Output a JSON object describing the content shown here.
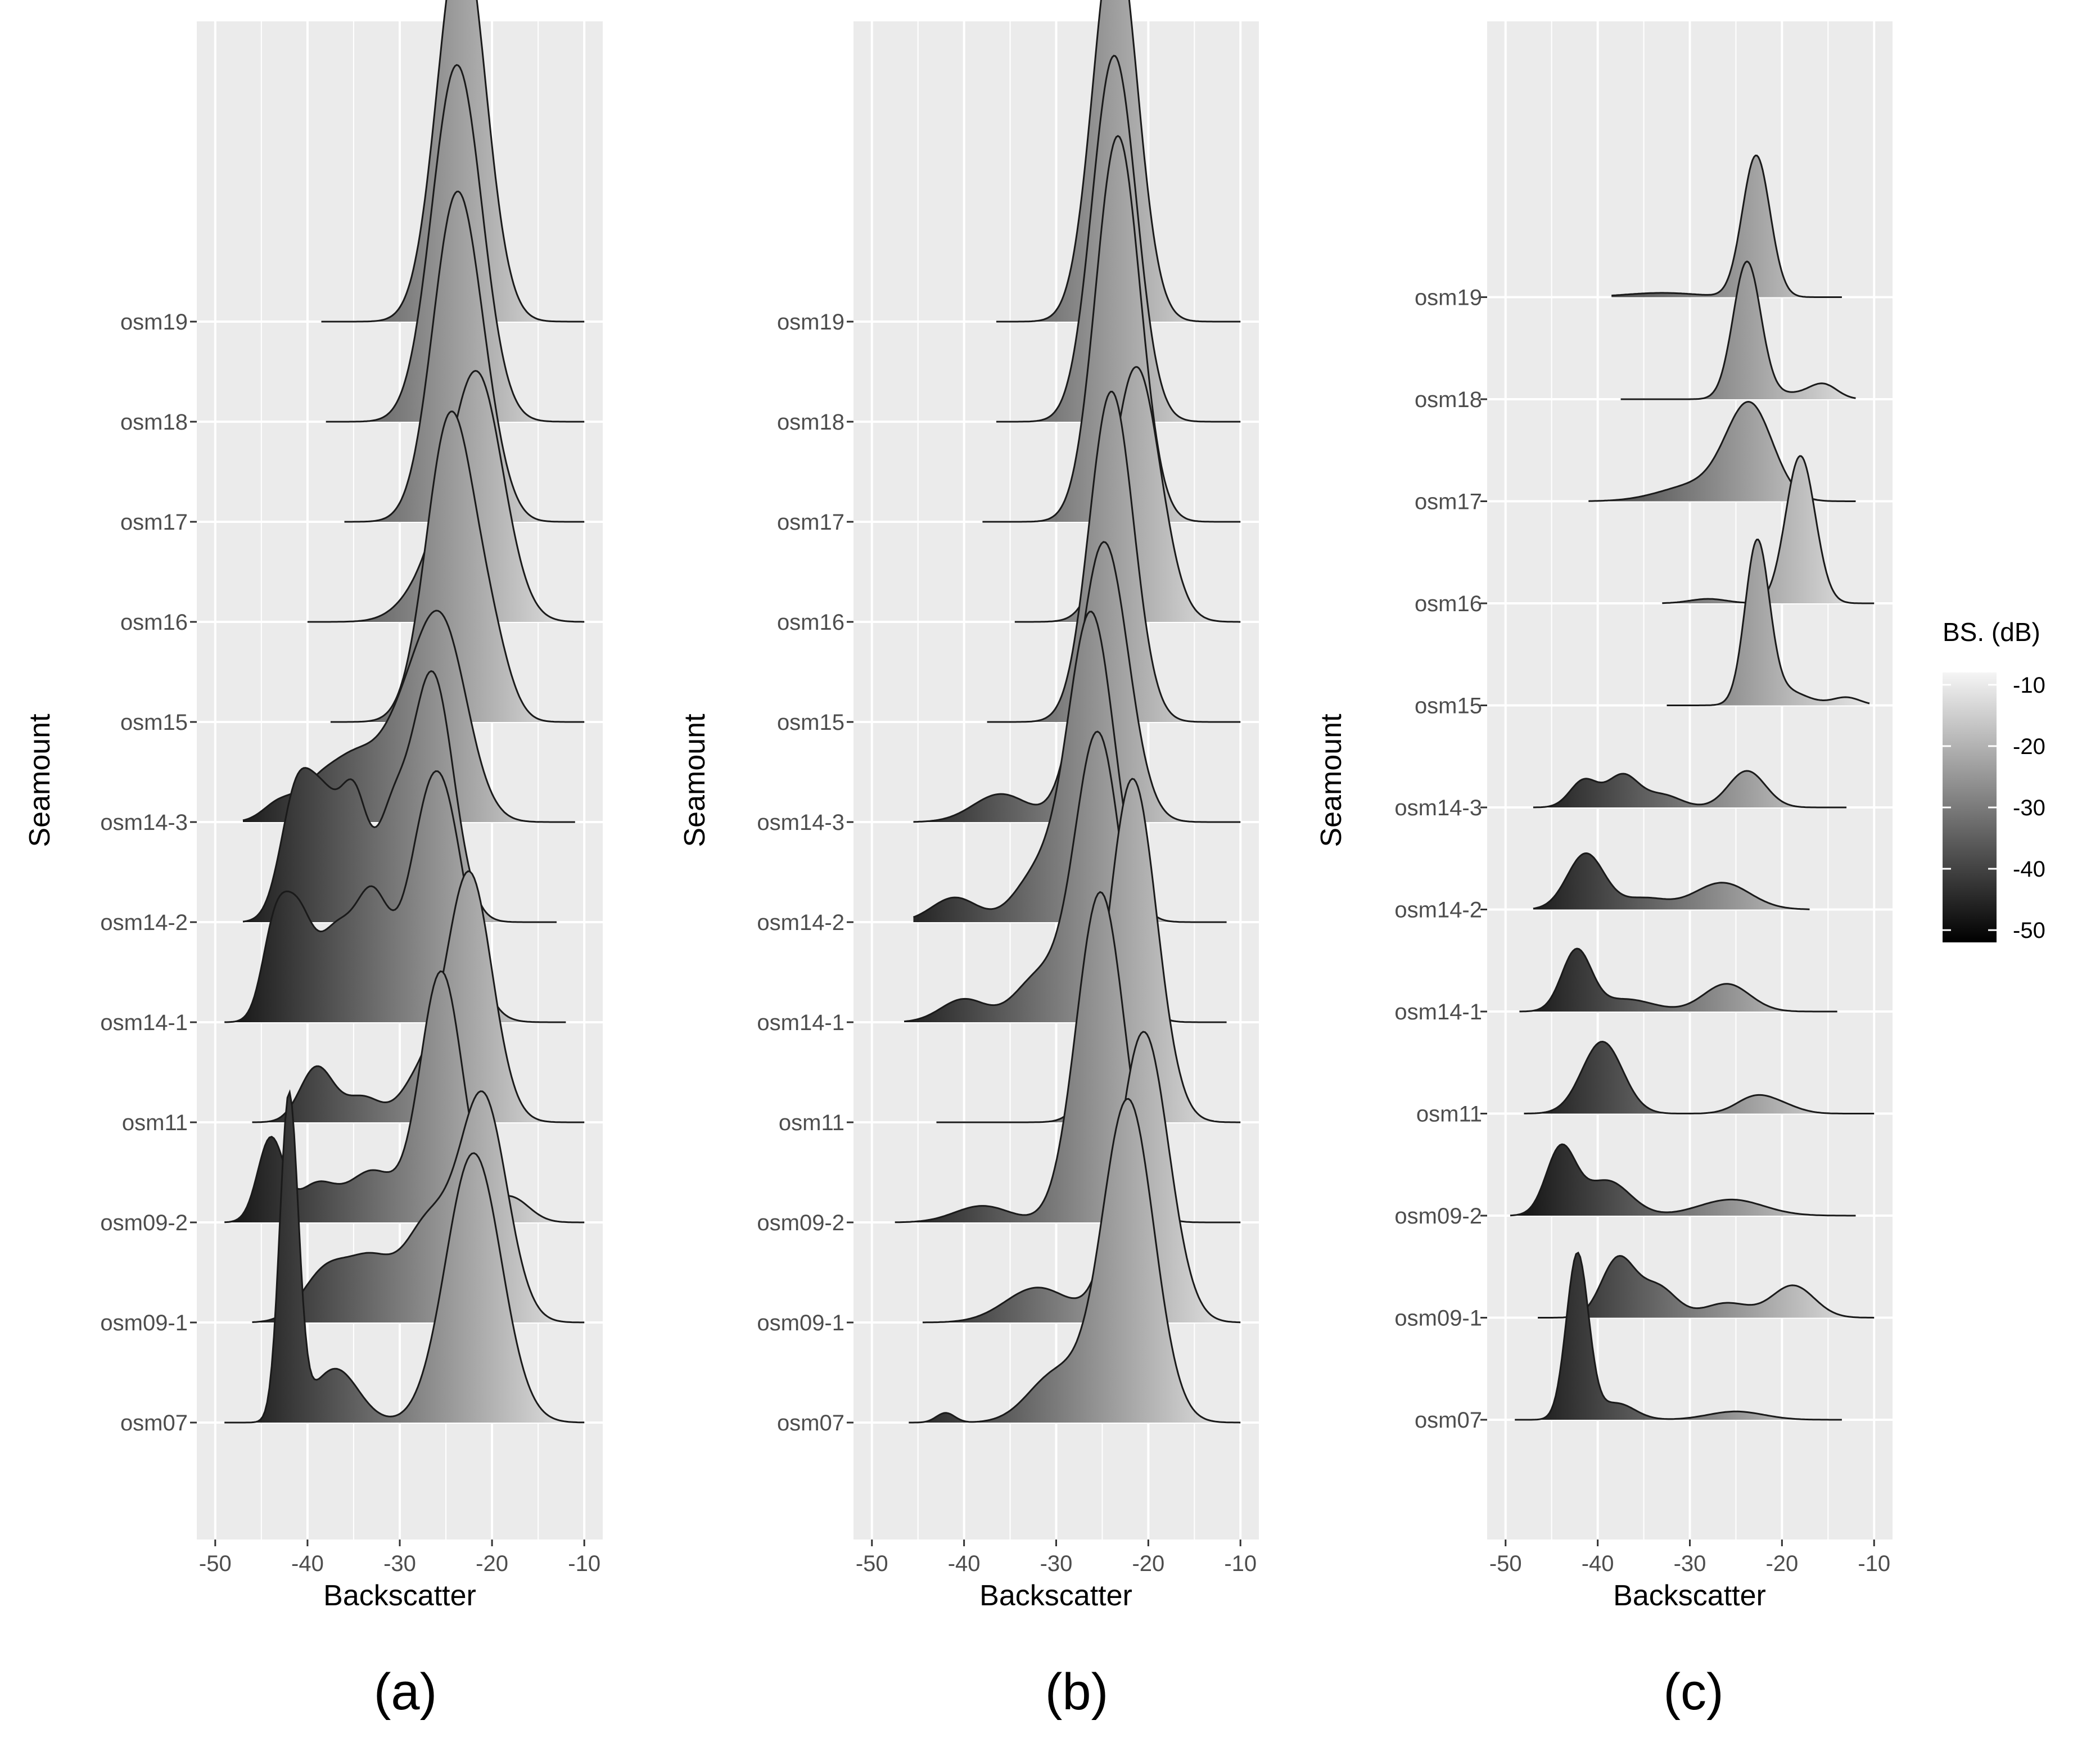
{
  "figure": {
    "legend": {
      "title": "BS. (dB)",
      "ticks": [
        "-10",
        "-20",
        "-30",
        "-40",
        "-50"
      ],
      "gradient": [
        "#f5f5f5",
        "#000000"
      ],
      "range": [
        -52,
        -8
      ]
    },
    "background": "#ebebeb",
    "grid_color": "#ffffff"
  },
  "chart_data": [
    {
      "panel_label": "(a)",
      "type": "ridgeline",
      "xlabel": "Backscatter",
      "ylabel": "Seamount",
      "xlim": [
        -52,
        -8
      ],
      "xticks": [
        -50,
        -40,
        -30,
        -20,
        -10
      ],
      "xtick_labels": [
        "-50",
        "-40",
        "-30",
        "-20",
        "-10"
      ],
      "categories": [
        "osm07",
        "osm09-1",
        "osm09-2",
        "osm11",
        "osm14-1",
        "osm14-2",
        "osm14-3",
        "osm15",
        "osm16",
        "osm17",
        "osm18",
        "osm19"
      ],
      "series": [
        {
          "label": "osm07",
          "range": [
            -49,
            -10
          ],
          "height": 2.5,
          "peaks": [
            [
              -42,
              0.9,
              1.0
            ],
            [
              -37,
              0.15,
              2.5
            ],
            [
              -22,
              0.75,
              3.0
            ]
          ]
        },
        {
          "label": "osm09-1",
          "range": [
            -46,
            -10
          ],
          "height": 1.75,
          "peaks": [
            [
              -38,
              0.22,
              2.5
            ],
            [
              -33,
              0.25,
              2.5
            ],
            [
              -27,
              0.4,
              2.5
            ],
            [
              -21,
              0.98,
              2.6
            ]
          ]
        },
        {
          "label": "osm09-2",
          "range": [
            -49,
            -10
          ],
          "height": 1.9,
          "peaks": [
            [
              -44,
              0.33,
              1.4
            ],
            [
              -39,
              0.15,
              2.2
            ],
            [
              -33,
              0.2,
              2.5
            ],
            [
              -25.5,
              1.0,
              2.3
            ],
            [
              -18,
              0.1,
              2.0
            ]
          ]
        },
        {
          "label": "osm11",
          "range": [
            -46,
            -10
          ],
          "height": 1.9,
          "peaks": [
            [
              -39,
              0.22,
              1.8
            ],
            [
              -34,
              0.1,
              2.0
            ],
            [
              -28,
              0.15,
              2.0
            ],
            [
              -22.5,
              1.0,
              2.5
            ]
          ]
        },
        {
          "label": "osm14-1",
          "range": [
            -49,
            -12
          ],
          "height": 1.9,
          "peaks": [
            [
              -43.5,
              0.37,
              1.4
            ],
            [
              -41,
              0.37,
              1.5
            ],
            [
              -37,
              0.35,
              2.0
            ],
            [
              -33,
              0.45,
              1.8
            ],
            [
              -26,
              1.0,
              2.8
            ]
          ]
        },
        {
          "label": "osm14-2",
          "range": [
            -47,
            -13
          ],
          "height": 1.9,
          "peaks": [
            [
              -41,
              0.55,
              1.8
            ],
            [
              -38,
              0.35,
              1.5
            ],
            [
              -35,
              0.5,
              1.5
            ],
            [
              -31,
              0.35,
              1.6
            ],
            [
              -26.5,
              1.0,
              2.3
            ]
          ]
        },
        {
          "label": "osm14-3",
          "range": [
            -47,
            -11
          ],
          "height": 1.6,
          "peaks": [
            [
              -43,
              0.1,
              1.8
            ],
            [
              -39,
              0.15,
              2.0
            ],
            [
              -35,
              0.3,
              2.5
            ],
            [
              -30,
              0.35,
              2.5
            ],
            [
              -25.5,
              1.0,
              2.8
            ]
          ]
        },
        {
          "label": "osm15",
          "range": [
            -37.5,
            -10
          ],
          "height": 2.35,
          "peaks": [
            [
              -24.5,
              1.0,
              2.6
            ],
            [
              -20,
              0.2,
              2.0
            ]
          ]
        },
        {
          "label": "osm16",
          "range": [
            -40,
            -10
          ],
          "height": 1.9,
          "peaks": [
            [
              -26,
              0.2,
              3.0
            ],
            [
              -21.5,
              1.0,
              2.8
            ]
          ]
        },
        {
          "label": "osm17",
          "range": [
            -36,
            -10
          ],
          "height": 2.5,
          "peaks": [
            [
              -23.8,
              1.0,
              2.6
            ],
            [
              -20,
              0.08,
              2.0
            ]
          ]
        },
        {
          "label": "osm18",
          "range": [
            -38,
            -10
          ],
          "height": 2.7,
          "peaks": [
            [
              -23.8,
              1.0,
              2.7
            ]
          ]
        },
        {
          "label": "osm19",
          "range": [
            -38.5,
            -10
          ],
          "height": 2.98,
          "peaks": [
            [
              -23.3,
              1.0,
              2.6
            ]
          ]
        }
      ]
    },
    {
      "panel_label": "(b)",
      "type": "ridgeline",
      "xlabel": "Backscatter",
      "ylabel": "Seamount",
      "xlim": [
        -52,
        -8
      ],
      "xticks": [
        -50,
        -40,
        -30,
        -20,
        -10
      ],
      "xtick_labels": [
        "-50",
        "-40",
        "-30",
        "-20",
        "-10"
      ],
      "categories": [
        "osm07",
        "osm09-1",
        "osm09-2",
        "osm11",
        "osm14-1",
        "osm14-2",
        "osm14-3",
        "osm15",
        "osm16",
        "osm17",
        "osm18",
        "osm19"
      ],
      "series": [
        {
          "label": "osm07",
          "range": [
            -46,
            -10
          ],
          "height": 2.45,
          "peaks": [
            [
              -42,
              0.03,
              1.0
            ],
            [
              -30,
              0.15,
              3.0
            ],
            [
              -22.2,
              1.0,
              2.8
            ]
          ]
        },
        {
          "label": "osm09-1",
          "range": [
            -44.5,
            -10
          ],
          "height": 2.2,
          "peaks": [
            [
              -32,
              0.12,
              3.5
            ],
            [
              -20.5,
              1.0,
              2.7
            ]
          ]
        },
        {
          "label": "osm09-2",
          "range": [
            -47.5,
            -10
          ],
          "height": 2.5,
          "peaks": [
            [
              -38,
              0.05,
              3.0
            ],
            [
              -25.2,
              1.0,
              2.6
            ]
          ]
        },
        {
          "label": "osm11",
          "range": [
            -43,
            -10
          ],
          "height": 2.6,
          "peaks": [
            [
              -21.7,
              1.0,
              2.6
            ]
          ]
        },
        {
          "label": "osm14-1",
          "range": [
            -46.5,
            -11.5
          ],
          "height": 2.2,
          "peaks": [
            [
              -40,
              0.08,
              2.5
            ],
            [
              -32,
              0.15,
              2.5
            ],
            [
              -25.5,
              1.0,
              2.5
            ]
          ]
        },
        {
          "label": "osm14-2",
          "range": [
            -45.5,
            -11.5
          ],
          "height": 2.35,
          "peaks": [
            [
              -41,
              0.08,
              2.5
            ],
            [
              -32,
              0.15,
              2.5
            ],
            [
              -26.2,
              1.0,
              2.5
            ]
          ]
        },
        {
          "label": "osm14-3",
          "range": [
            -45.5,
            -10
          ],
          "height": 2.12,
          "peaks": [
            [
              -36,
              0.1,
              3.0
            ],
            [
              -24.8,
              1.0,
              2.6
            ]
          ]
        },
        {
          "label": "osm15",
          "range": [
            -37.5,
            -10
          ],
          "height": 2.5,
          "peaks": [
            [
              -24,
              1.0,
              2.4
            ]
          ]
        },
        {
          "label": "osm16",
          "range": [
            -34.5,
            -10
          ],
          "height": 1.93,
          "peaks": [
            [
              -21.3,
              1.0,
              2.6
            ]
          ]
        },
        {
          "label": "osm17",
          "range": [
            -38,
            -10
          ],
          "height": 2.92,
          "peaks": [
            [
              -23.3,
              1.0,
              2.4
            ]
          ]
        },
        {
          "label": "osm18",
          "range": [
            -36.5,
            -10
          ],
          "height": 2.77,
          "peaks": [
            [
              -23.7,
              1.0,
              2.4
            ]
          ]
        },
        {
          "label": "osm19",
          "range": [
            -36.5,
            -10
          ],
          "height": 2.98,
          "peaks": [
            [
              -23.6,
              1.0,
              2.4
            ]
          ]
        }
      ]
    },
    {
      "panel_label": "(c)",
      "type": "ridgeline",
      "xlabel": "Backscatter",
      "ylabel": "Seamount",
      "xlim": [
        -52,
        -8
      ],
      "xticks": [
        -50,
        -40,
        -30,
        -20,
        -10
      ],
      "xtick_labels": [
        "-50",
        "-40",
        "-30",
        "-20",
        "-10"
      ],
      "categories": [
        "osm07",
        "osm09-1",
        "osm09-2",
        "osm11",
        "osm14-1",
        "osm14-2",
        "osm14-3",
        "osm15",
        "osm16",
        "osm17",
        "osm18",
        "osm19"
      ],
      "series": [
        {
          "label": "osm07",
          "range": [
            -49,
            -13.5
          ],
          "height": 2.97,
          "peaks": [
            [
              -42.2,
              1.0,
              1.2
            ],
            [
              -38,
              0.1,
              2.0
            ],
            [
              -25,
              0.05,
              3.0
            ]
          ]
        },
        {
          "label": "osm09-1",
          "range": [
            -46.5,
            -10
          ],
          "height": 1.1,
          "peaks": [
            [
              -37.8,
              0.8,
              1.8
            ],
            [
              -33.5,
              0.42,
              2.0
            ],
            [
              -26,
              0.2,
              2.5
            ],
            [
              -18.8,
              0.44,
              2.3
            ]
          ]
        },
        {
          "label": "osm09-2",
          "range": [
            -49.5,
            -12
          ],
          "height": 1.27,
          "peaks": [
            [
              -44,
              0.95,
              1.6
            ],
            [
              -39,
              0.5,
              2.5
            ],
            [
              -25.5,
              0.23,
              3.5
            ]
          ]
        },
        {
          "label": "osm11",
          "range": [
            -48,
            -10
          ],
          "height": 1.28,
          "peaks": [
            [
              -39.5,
              1.0,
              2.2
            ],
            [
              -23,
              0.22,
              2.0
            ],
            [
              -20,
              0.1,
              2.0
            ]
          ]
        },
        {
          "label": "osm14-1",
          "range": [
            -48.5,
            -14
          ],
          "height": 1.12,
          "peaks": [
            [
              -42.3,
              0.98,
              1.6
            ],
            [
              -37,
              0.2,
              3.0
            ],
            [
              -26,
              0.45,
              2.5
            ]
          ]
        },
        {
          "label": "osm14-2",
          "range": [
            -47,
            -17
          ],
          "height": 1.0,
          "peaks": [
            [
              -41.3,
              1.0,
              2.0
            ],
            [
              -35,
              0.2,
              2.5
            ],
            [
              -26.5,
              0.48,
              3.0
            ]
          ]
        },
        {
          "label": "osm14-3",
          "range": [
            -47,
            -13
          ],
          "height": 0.65,
          "peaks": [
            [
              -41.5,
              0.65,
              1.5
            ],
            [
              -37.3,
              0.77,
              1.7
            ],
            [
              -33,
              0.3,
              2.0
            ],
            [
              -23.8,
              0.88,
              2.0
            ]
          ]
        },
        {
          "label": "osm15",
          "range": [
            -32.5,
            -10.5
          ],
          "height": 2.95,
          "peaks": [
            [
              -22.7,
              1.0,
              1.3
            ],
            [
              -20,
              0.1,
              2.5
            ],
            [
              -13,
              0.05,
              1.5
            ]
          ]
        },
        {
          "label": "osm16",
          "range": [
            -33,
            -10
          ],
          "height": 2.62,
          "peaks": [
            [
              -28,
              0.03,
              2.0
            ],
            [
              -18,
              1.0,
              1.6
            ]
          ]
        },
        {
          "label": "osm17",
          "range": [
            -41,
            -12
          ],
          "height": 1.77,
          "peaks": [
            [
              -29,
              0.18,
              4.0
            ],
            [
              -23.5,
              1.0,
              2.5
            ]
          ]
        },
        {
          "label": "osm18",
          "range": [
            -37.5,
            -12
          ],
          "height": 2.45,
          "peaks": [
            [
              -23.8,
              1.0,
              1.5
            ],
            [
              -19,
              0.04,
              2.5
            ],
            [
              -15.5,
              0.1,
              1.5
            ]
          ]
        },
        {
          "label": "osm19",
          "range": [
            -38.5,
            -13.5
          ],
          "height": 2.52,
          "peaks": [
            [
              -33,
              0.03,
              4.0
            ],
            [
              -22.8,
              1.0,
              1.5
            ]
          ]
        }
      ]
    }
  ]
}
